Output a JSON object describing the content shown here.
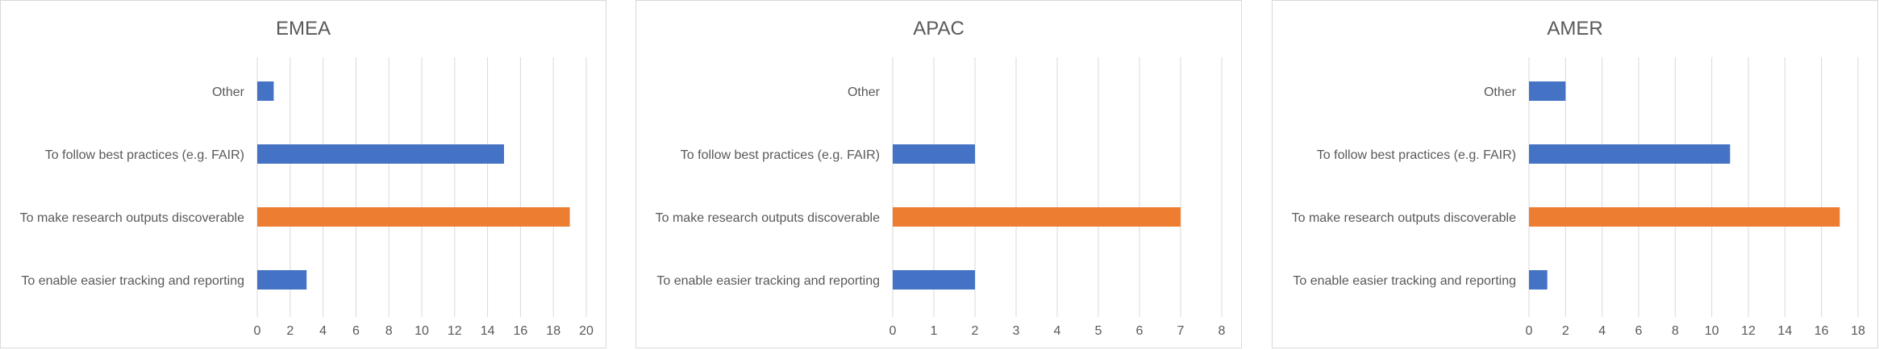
{
  "colors": {
    "default_bar": "#4472c4",
    "highlight_bar": "#ed7d31"
  },
  "chart_data": [
    {
      "type": "bar",
      "orientation": "horizontal",
      "title": "EMEA",
      "categories": [
        "Other",
        "To follow best practices (e.g. FAIR)",
        "To make research outputs discoverable",
        "To enable easier tracking and reporting"
      ],
      "values": [
        1,
        15,
        19,
        3
      ],
      "highlight_index": 2,
      "xlim": [
        0,
        20
      ],
      "xticks": [
        "0",
        "2",
        "4",
        "6",
        "8",
        "10",
        "12",
        "14",
        "16",
        "18",
        "20"
      ],
      "grid": true
    },
    {
      "type": "bar",
      "orientation": "horizontal",
      "title": "APAC",
      "categories": [
        "Other",
        "To follow best practices (e.g. FAIR)",
        "To make research outputs discoverable",
        "To enable easier tracking and reporting"
      ],
      "values": [
        0,
        2,
        7,
        2
      ],
      "highlight_index": 2,
      "xlim": [
        0,
        8
      ],
      "xticks": [
        "0",
        "1",
        "2",
        "3",
        "4",
        "5",
        "6",
        "7",
        "8"
      ],
      "grid": true
    },
    {
      "type": "bar",
      "orientation": "horizontal",
      "title": "AMER",
      "categories": [
        "Other",
        "To follow best practices (e.g. FAIR)",
        "To make research outputs discoverable",
        "To enable easier tracking and reporting"
      ],
      "values": [
        2,
        11,
        17,
        1
      ],
      "highlight_index": 2,
      "xlim": [
        0,
        18
      ],
      "xticks": [
        "0",
        "2",
        "4",
        "6",
        "8",
        "10",
        "12",
        "14",
        "16",
        "18"
      ],
      "grid": true
    }
  ]
}
